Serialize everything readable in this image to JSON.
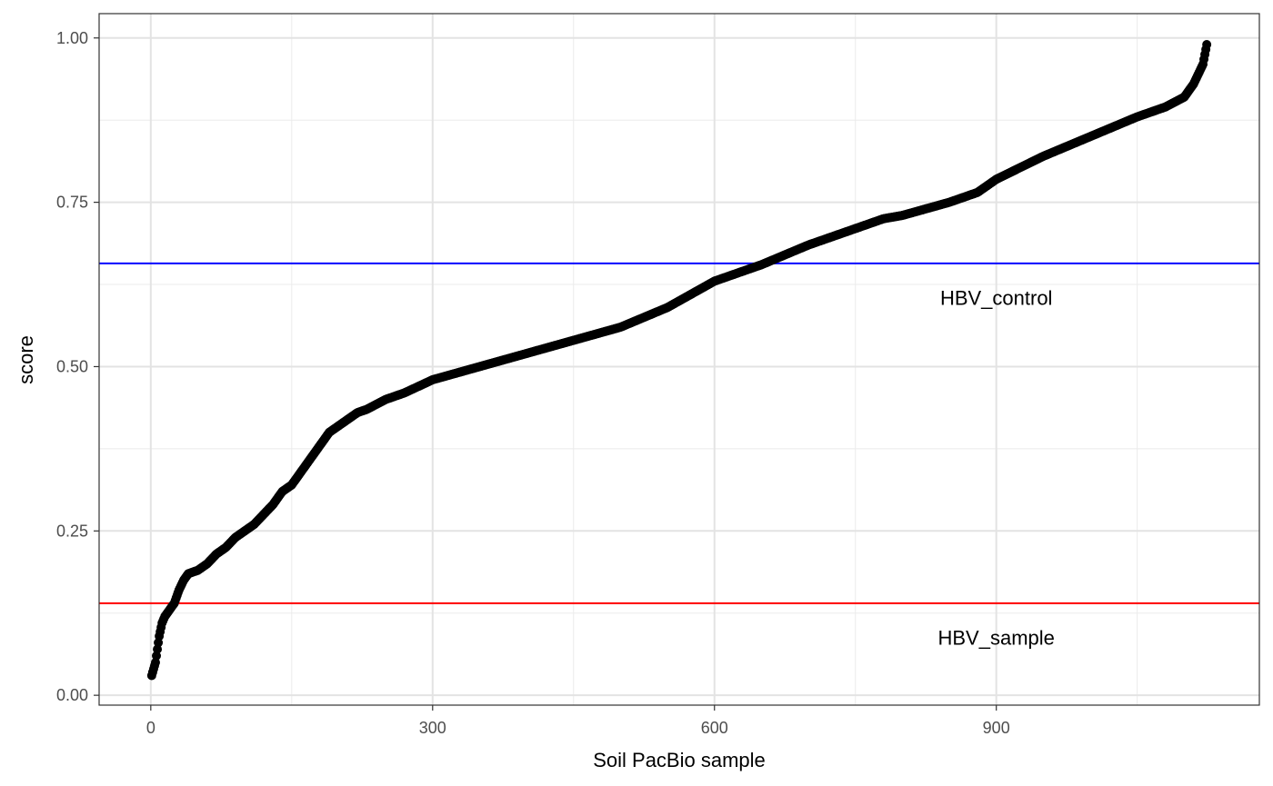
{
  "chart_data": {
    "type": "scatter",
    "xlabel": "Soil PacBio sample",
    "ylabel": "score",
    "xlim": [
      -55,
      1180
    ],
    "ylim": [
      -0.015,
      1.037
    ],
    "x_ticks": [
      0,
      300,
      600,
      900
    ],
    "x_tick_labels": [
      "0",
      "300",
      "600",
      "900"
    ],
    "y_ticks": [
      0.0,
      0.25,
      0.5,
      0.75,
      1.0
    ],
    "y_tick_labels": [
      "0.00",
      "0.25",
      "0.50",
      "0.75",
      "1.00"
    ],
    "grid": true,
    "n_points": 1124,
    "point_color": "#000000",
    "curve_anchors": {
      "x": [
        1,
        3,
        5,
        7,
        9,
        12,
        15,
        20,
        25,
        30,
        35,
        40,
        50,
        60,
        70,
        80,
        90,
        100,
        110,
        120,
        130,
        140,
        150,
        160,
        170,
        180,
        190,
        200,
        210,
        220,
        230,
        250,
        270,
        300,
        350,
        400,
        450,
        500,
        550,
        600,
        650,
        700,
        750,
        780,
        800,
        850,
        880,
        900,
        950,
        1000,
        1050,
        1080,
        1100,
        1110,
        1120,
        1124
      ],
      "y": [
        0.03,
        0.04,
        0.05,
        0.07,
        0.09,
        0.11,
        0.12,
        0.13,
        0.14,
        0.16,
        0.175,
        0.185,
        0.19,
        0.2,
        0.215,
        0.225,
        0.24,
        0.25,
        0.26,
        0.275,
        0.29,
        0.31,
        0.32,
        0.34,
        0.36,
        0.38,
        0.4,
        0.41,
        0.42,
        0.43,
        0.435,
        0.45,
        0.46,
        0.48,
        0.5,
        0.52,
        0.54,
        0.56,
        0.59,
        0.63,
        0.655,
        0.685,
        0.71,
        0.725,
        0.73,
        0.75,
        0.765,
        0.785,
        0.82,
        0.85,
        0.88,
        0.895,
        0.91,
        0.93,
        0.96,
        0.99
      ]
    },
    "hlines": [
      {
        "y": 0.657,
        "color": "#0000ff"
      },
      {
        "y": 0.14,
        "color": "#ff0000"
      }
    ],
    "annotations": [
      {
        "text": "HBV_control",
        "x": 900,
        "y": 0.605
      },
      {
        "text": "HBV_sample",
        "x": 900,
        "y": 0.088
      }
    ]
  }
}
